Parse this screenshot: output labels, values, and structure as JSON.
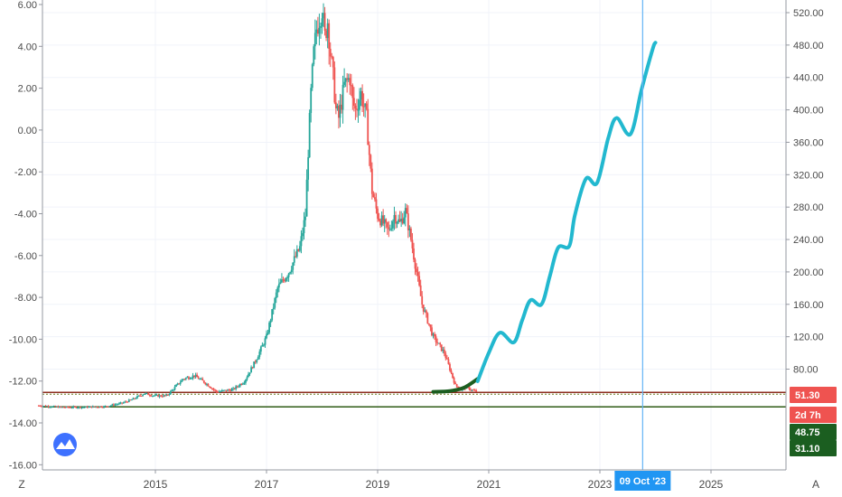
{
  "chart_data": {
    "type": "line",
    "title": "",
    "xlabel": "",
    "ylabel": "",
    "left_axis": {
      "ticks": [
        "6.00",
        "4.00",
        "2.00",
        "0.00",
        "-2.00",
        "-4.00",
        "-6.00",
        "-8.00",
        "-10.00",
        "-12.00",
        "-14.00",
        "-16.00"
      ],
      "values": [
        6,
        4,
        2,
        0,
        -2,
        -4,
        -6,
        -8,
        -10,
        -12,
        -14,
        -16
      ],
      "ylim": [
        -16,
        6
      ]
    },
    "right_axis": {
      "ticks": [
        "520.00",
        "480.00",
        "440.00",
        "400.00",
        "360.00",
        "320.00",
        "280.00",
        "240.00",
        "200.00",
        "160.00",
        "120.00",
        "80.00"
      ],
      "values": [
        520,
        480,
        440,
        400,
        360,
        320,
        280,
        240,
        200,
        160,
        120,
        80
      ],
      "ylim": [
        30,
        535
      ]
    },
    "x_axis": {
      "ticks": [
        "2015",
        "2017",
        "2019",
        "2021",
        "2023",
        "2025"
      ],
      "values": [
        2015,
        2017,
        2019,
        2021,
        2023,
        2025
      ],
      "xlim": [
        2012.8,
        2026.4
      ]
    },
    "price_series": {
      "name": "",
      "points": [
        [
          2012.9,
          35
        ],
        [
          2013.3,
          33
        ],
        [
          2013.7,
          33
        ],
        [
          2014.1,
          34
        ],
        [
          2014.4,
          38
        ],
        [
          2014.6,
          43
        ],
        [
          2014.8,
          50
        ],
        [
          2015.0,
          47
        ],
        [
          2015.2,
          47
        ],
        [
          2015.5,
          68
        ],
        [
          2015.7,
          72
        ],
        [
          2015.9,
          63
        ],
        [
          2016.1,
          52
        ],
        [
          2016.4,
          55
        ],
        [
          2016.6,
          65
        ],
        [
          2016.8,
          90
        ],
        [
          2017.0,
          120
        ],
        [
          2017.2,
          180
        ],
        [
          2017.4,
          200
        ],
        [
          2017.6,
          230
        ],
        [
          2017.7,
          270
        ],
        [
          2017.75,
          350
        ],
        [
          2017.8,
          420
        ],
        [
          2017.85,
          470
        ],
        [
          2017.9,
          500
        ],
        [
          2018.0,
          525
        ],
        [
          2018.05,
          490
        ],
        [
          2018.1,
          510
        ],
        [
          2018.15,
          470
        ],
        [
          2018.2,
          440
        ],
        [
          2018.25,
          400
        ],
        [
          2018.3,
          390
        ],
        [
          2018.4,
          430
        ],
        [
          2018.5,
          440
        ],
        [
          2018.55,
          410
        ],
        [
          2018.6,
          400
        ],
        [
          2018.7,
          420
        ],
        [
          2018.8,
          390
        ],
        [
          2018.9,
          300
        ],
        [
          2019.0,
          270
        ],
        [
          2019.1,
          260
        ],
        [
          2019.2,
          250
        ],
        [
          2019.3,
          270
        ],
        [
          2019.4,
          260
        ],
        [
          2019.5,
          275
        ],
        [
          2019.6,
          240
        ],
        [
          2019.7,
          200
        ],
        [
          2019.8,
          160
        ],
        [
          2019.9,
          140
        ],
        [
          2020.0,
          120
        ],
        [
          2020.1,
          110
        ],
        [
          2020.2,
          100
        ],
        [
          2020.3,
          80
        ],
        [
          2020.4,
          60
        ],
        [
          2020.5,
          55
        ],
        [
          2020.6,
          58
        ],
        [
          2020.7,
          54
        ],
        [
          2020.8,
          52
        ]
      ]
    },
    "projection_curve": {
      "name": "",
      "color": "#22b8cf",
      "points": [
        [
          2020.8,
          65
        ],
        [
          2021.0,
          100
        ],
        [
          2021.2,
          125
        ],
        [
          2021.45,
          113
        ],
        [
          2021.6,
          140
        ],
        [
          2021.75,
          165
        ],
        [
          2021.95,
          160
        ],
        [
          2022.1,
          195
        ],
        [
          2022.25,
          230
        ],
        [
          2022.45,
          232
        ],
        [
          2022.55,
          270
        ],
        [
          2022.75,
          315
        ],
        [
          2022.95,
          310
        ],
        [
          2023.15,
          365
        ],
        [
          2023.3,
          390
        ],
        [
          2023.55,
          370
        ],
        [
          2023.75,
          425
        ],
        [
          2023.95,
          475
        ],
        [
          2024.0,
          483
        ]
      ]
    },
    "dark_arc": {
      "color": "#1b5e20",
      "points": [
        [
          2020.0,
          52
        ],
        [
          2020.3,
          53
        ],
        [
          2020.55,
          57
        ],
        [
          2020.8,
          68
        ]
      ]
    },
    "support_lines": [
      {
        "value": 51.3,
        "color": "#8c2c1f"
      },
      {
        "value": 33.5,
        "color": "#2e5b14"
      }
    ],
    "vertical_marker": {
      "x": 2023.77,
      "color": "#64b5f6"
    },
    "price_labels": [
      {
        "text": "51.30",
        "color": "#ef5350"
      },
      {
        "text": "2d 7h",
        "color": "#ef5350"
      },
      {
        "text": "48.75",
        "color": "#1b5e20"
      },
      {
        "text": "31.10",
        "color": "#1b5e20"
      }
    ],
    "date_badge": {
      "text": "09 Oct '23",
      "color": "#2196f3"
    },
    "corner_left": "Z",
    "corner_right": "A"
  }
}
